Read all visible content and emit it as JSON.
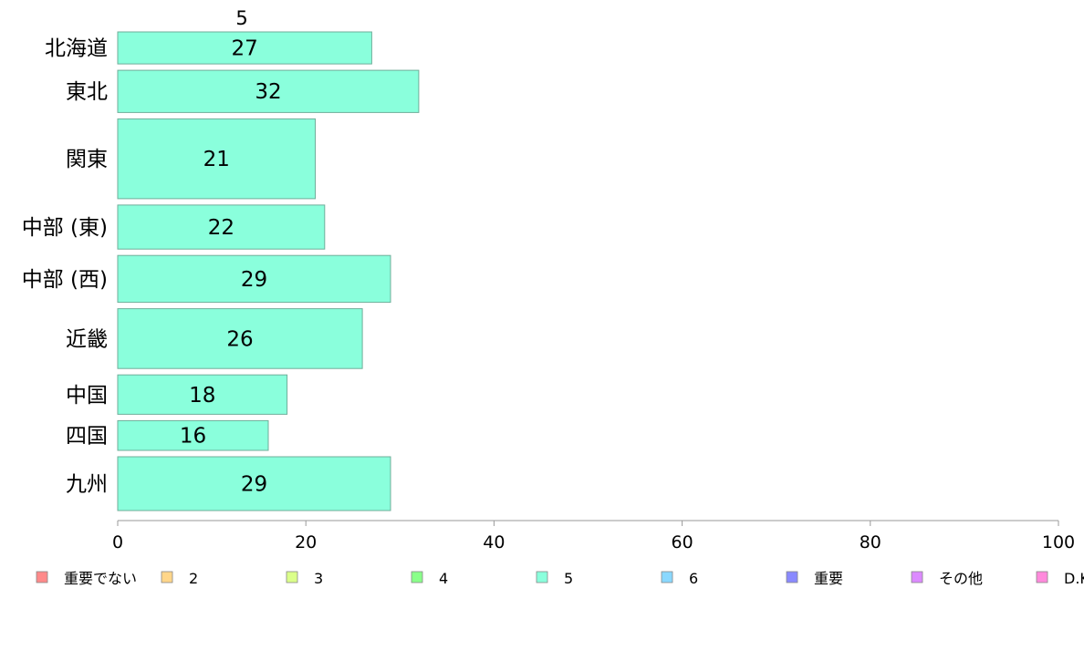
{
  "chart_data": {
    "type": "bar",
    "orientation": "horizontal",
    "series_title": "5",
    "categories": [
      "北海道",
      "東北",
      "関東",
      "中部 (東)",
      "中部 (西)",
      "近畿",
      "中国",
      "四国",
      "九州"
    ],
    "series": [
      {
        "name": "5",
        "values": [
          27,
          32,
          21,
          22,
          29,
          26,
          18,
          16,
          29
        ]
      }
    ],
    "bar_weights": [
      0.69,
      0.91,
      1.72,
      0.95,
      1.01,
      1.29,
      0.85,
      0.64,
      1.16
    ],
    "xlim": [
      0,
      100
    ],
    "xticks": [
      0,
      20,
      40,
      60,
      80,
      100
    ],
    "grid": false,
    "legend_position": "bottom",
    "legend": [
      {
        "label": "重要でない",
        "color": "#FF8A8A"
      },
      {
        "label": "2",
        "color": "#FFD68A"
      },
      {
        "label": "3",
        "color": "#DBFF8A"
      },
      {
        "label": "4",
        "color": "#8AFF8A"
      },
      {
        "label": "5",
        "color": "#8AFFDC"
      },
      {
        "label": "6",
        "color": "#8AD8FF"
      },
      {
        "label": "重要",
        "color": "#8A8AFF"
      },
      {
        "label": "その他",
        "color": "#DC8AFF"
      },
      {
        "label": "D.K",
        "color": "#FF8ADC"
      }
    ],
    "bar_color": "#8AFFDC"
  }
}
